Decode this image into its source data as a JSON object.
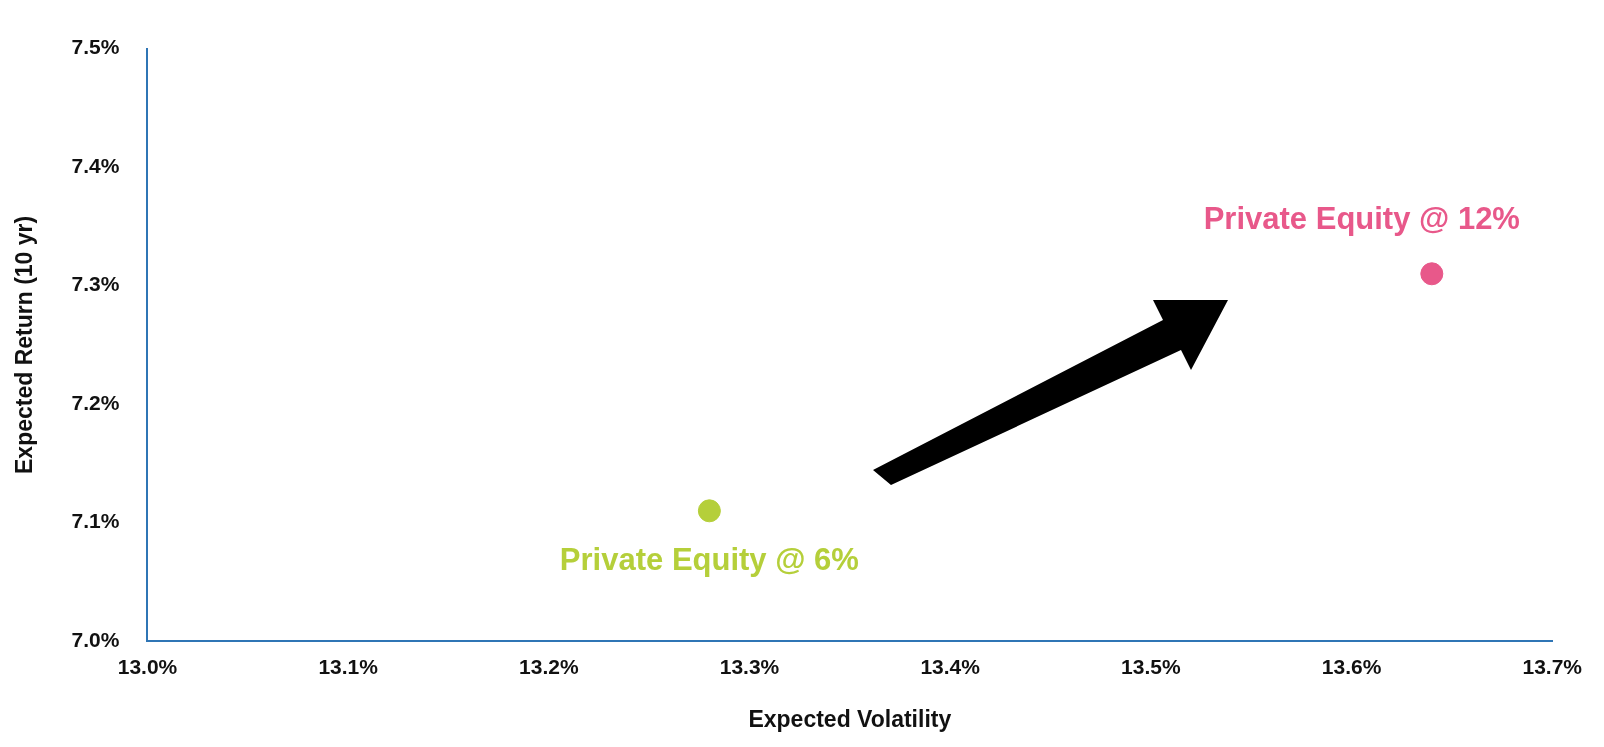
{
  "chart_data": {
    "type": "scatter",
    "xlabel": "Expected Volatility",
    "ylabel": "Expected Return (10 yr)",
    "series": [
      {
        "name": "Private Equity @ 6%",
        "color": "#b5cf3a",
        "x": [
          13.28
        ],
        "values": [
          7.11
        ]
      },
      {
        "name": "Private Equity @ 12%",
        "color": "#e8588a",
        "x": [
          13.64
        ],
        "values": [
          7.31
        ]
      }
    ],
    "xlim": [
      13.0,
      13.7
    ],
    "xticks": [
      {
        "value": 13.0,
        "label": "13.0%"
      },
      {
        "value": 13.1,
        "label": "13.1%"
      },
      {
        "value": 13.2,
        "label": "13.2%"
      },
      {
        "value": 13.3,
        "label": "13.3%"
      },
      {
        "value": 13.4,
        "label": "13.4%"
      },
      {
        "value": 13.5,
        "label": "13.5%"
      },
      {
        "value": 13.6,
        "label": "13.6%"
      },
      {
        "value": 13.7,
        "label": "13.7%"
      }
    ],
    "ylim": [
      7.0,
      7.5
    ],
    "yticks": [
      {
        "value": 7.0,
        "label": "7.0%"
      },
      {
        "value": 7.1,
        "label": "7.1%"
      },
      {
        "value": 7.2,
        "label": "7.2%"
      },
      {
        "value": 7.3,
        "label": "7.3%"
      },
      {
        "value": 7.4,
        "label": "7.4%"
      },
      {
        "value": 7.5,
        "label": "7.5%"
      }
    ],
    "grid": false,
    "legend": false,
    "marker": "circle"
  }
}
